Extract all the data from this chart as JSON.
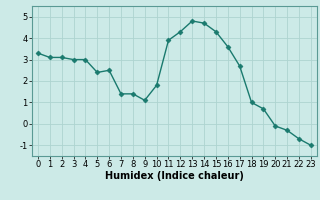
{
  "x": [
    0,
    1,
    2,
    3,
    4,
    5,
    6,
    7,
    8,
    9,
    10,
    11,
    12,
    13,
    14,
    15,
    16,
    17,
    18,
    19,
    20,
    21,
    22,
    23
  ],
  "y": [
    3.3,
    3.1,
    3.1,
    3.0,
    3.0,
    2.4,
    2.5,
    1.4,
    1.4,
    1.1,
    1.8,
    3.9,
    4.3,
    4.8,
    4.7,
    4.3,
    3.6,
    2.7,
    1.0,
    0.7,
    -0.1,
    -0.3,
    -0.7,
    -1.0
  ],
  "line_color": "#1a7a6e",
  "marker": "D",
  "marker_size": 2.5,
  "bg_color": "#cceae7",
  "grid_color": "#aed4d0",
  "xlabel": "Humidex (Indice chaleur)",
  "xlim": [
    -0.5,
    23.5
  ],
  "ylim": [
    -1.5,
    5.5
  ],
  "yticks": [
    -1,
    0,
    1,
    2,
    3,
    4,
    5
  ],
  "xticks": [
    0,
    1,
    2,
    3,
    4,
    5,
    6,
    7,
    8,
    9,
    10,
    11,
    12,
    13,
    14,
    15,
    16,
    17,
    18,
    19,
    20,
    21,
    22,
    23
  ],
  "tick_fontsize": 6.0,
  "xlabel_fontsize": 7.0,
  "linewidth": 1.0
}
